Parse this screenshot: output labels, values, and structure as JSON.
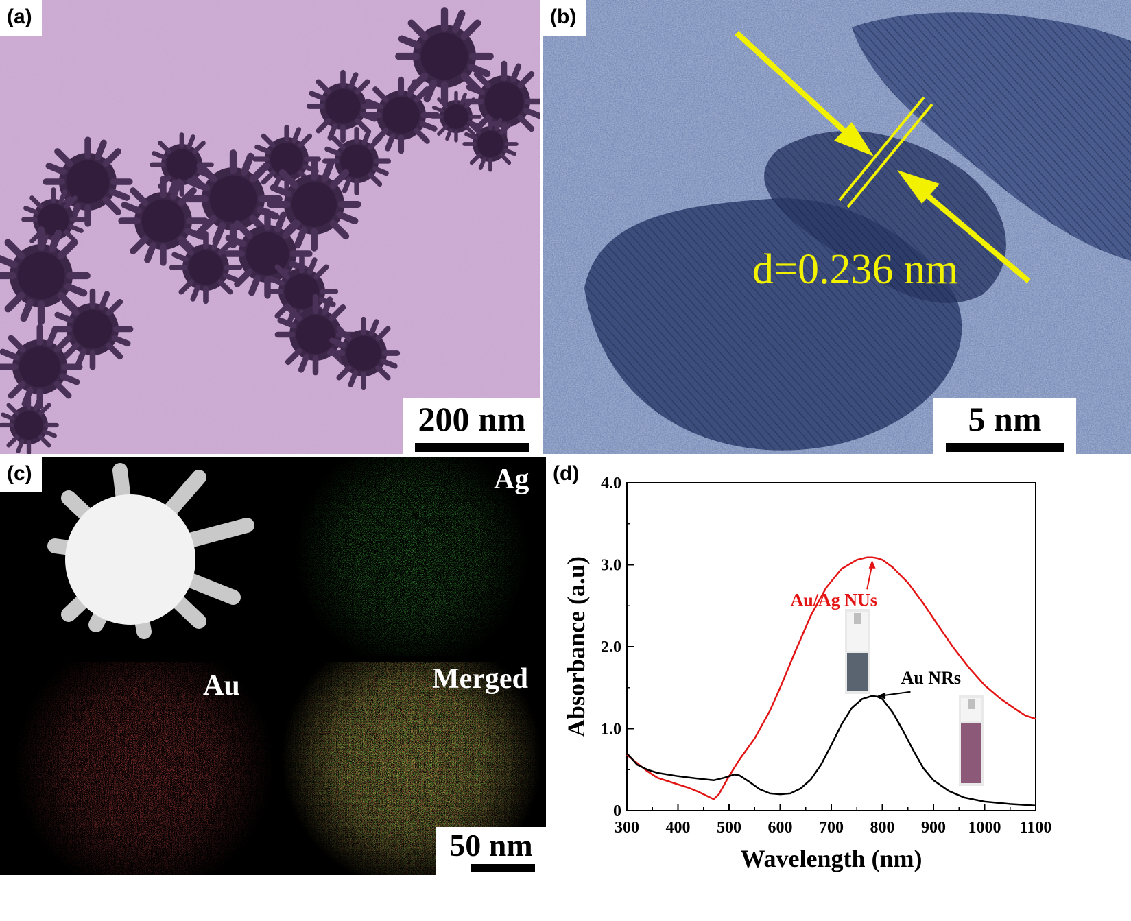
{
  "figure": {
    "panels": {
      "a": {
        "label": "(a)",
        "scale_bar": "200 nm"
      },
      "b": {
        "label": "(b)",
        "scale_bar": "5 nm",
        "annotation": "d=0.236 nm"
      },
      "c": {
        "label": "(c)",
        "scale_bar": "50 nm",
        "maps": {
          "ag": "Ag",
          "au": "Au",
          "merged": "Merged"
        }
      },
      "d": {
        "label": "(d)"
      }
    }
  },
  "colors": {
    "tem_background": "#c9a6cf",
    "particle": "#3d2748",
    "hrtem": "#4a5d8f",
    "annotation": "#f2f200",
    "ag_map": "#1fd21f",
    "au_map": "#e01a1a",
    "series_au_ag": "#e31414",
    "series_au": "#000000"
  },
  "chart_data": {
    "type": "line",
    "xlabel": "Wavelength (nm)",
    "ylabel": "Absorbance (a.u)",
    "xlim": [
      300,
      1100
    ],
    "ylim": [
      0,
      4.0
    ],
    "xticks": [
      "300",
      "400",
      "500",
      "600",
      "700",
      "800",
      "900",
      "1000",
      "1100"
    ],
    "yticks": [
      "0",
      "1.0",
      "2.0",
      "3.0",
      "4.0"
    ],
    "grid": false,
    "legend": "none",
    "series": [
      {
        "name": "Au/Ag NUs",
        "color": "#e31414",
        "x": [
          300,
          320,
          340,
          360,
          380,
          400,
          420,
          440,
          460,
          470,
          480,
          500,
          520,
          550,
          580,
          600,
          630,
          660,
          690,
          720,
          750,
          770,
          780,
          790,
          800,
          820,
          850,
          880,
          910,
          940,
          970,
          1000,
          1030,
          1060,
          1080,
          1100
        ],
        "y": [
          0.68,
          0.58,
          0.48,
          0.4,
          0.36,
          0.32,
          0.28,
          0.23,
          0.17,
          0.14,
          0.2,
          0.42,
          0.62,
          0.88,
          1.22,
          1.5,
          1.95,
          2.38,
          2.72,
          2.95,
          3.06,
          3.09,
          3.09,
          3.08,
          3.06,
          2.97,
          2.78,
          2.53,
          2.25,
          1.98,
          1.74,
          1.53,
          1.37,
          1.24,
          1.16,
          1.12
        ]
      },
      {
        "name": "Au NRs",
        "color": "#000000",
        "x": [
          300,
          320,
          340,
          360,
          400,
          440,
          470,
          490,
          510,
          520,
          540,
          560,
          580,
          600,
          620,
          640,
          660,
          680,
          700,
          720,
          740,
          760,
          780,
          790,
          800,
          820,
          840,
          860,
          880,
          900,
          930,
          960,
          1000,
          1050,
          1100
        ],
        "y": [
          0.7,
          0.56,
          0.5,
          0.46,
          0.42,
          0.39,
          0.37,
          0.4,
          0.44,
          0.43,
          0.35,
          0.26,
          0.21,
          0.2,
          0.21,
          0.27,
          0.38,
          0.56,
          0.8,
          1.05,
          1.25,
          1.36,
          1.4,
          1.39,
          1.36,
          1.2,
          0.98,
          0.74,
          0.52,
          0.37,
          0.24,
          0.16,
          0.11,
          0.08,
          0.06
        ]
      }
    ],
    "annotations": [
      {
        "text": "Au/Ag NUs",
        "points_to": [
          780,
          3.09
        ],
        "color": "#e31414"
      },
      {
        "text": "Au NRs",
        "points_to": [
          785,
          1.4
        ],
        "color": "#000000"
      }
    ]
  }
}
